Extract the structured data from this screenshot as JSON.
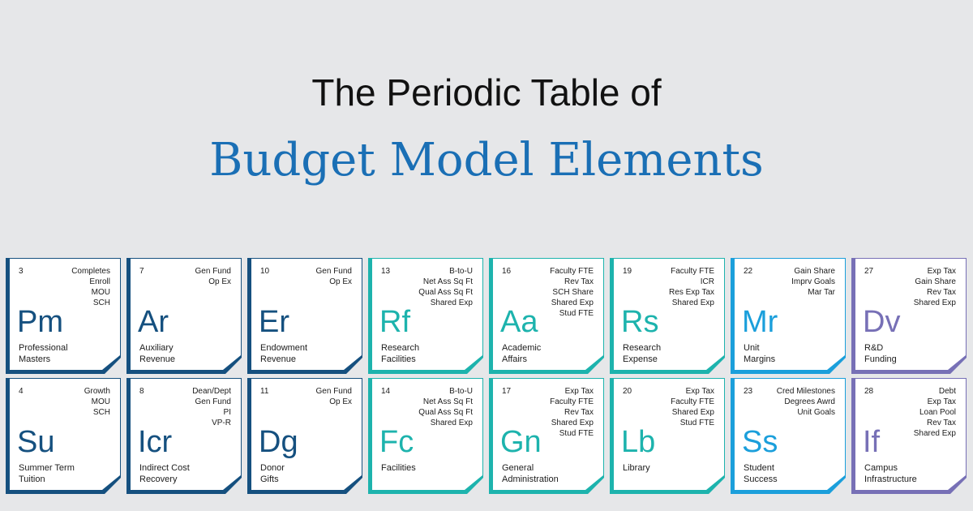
{
  "header": {
    "title_line1": "The Periodic Table of",
    "title_line2": "Budget Model Elements"
  },
  "rows": [
    [
      {
        "number": 3,
        "symbol": "Pm",
        "name": [
          "Professional",
          "Masters"
        ],
        "tags": [
          "Completes",
          "Enroll",
          "MOU",
          "SCH"
        ],
        "color": "#15507f"
      },
      {
        "number": 7,
        "symbol": "Ar",
        "name": [
          "Auxiliary",
          "Revenue"
        ],
        "tags": [
          "Gen Fund",
          "Op Ex"
        ],
        "color": "#15507f"
      },
      {
        "number": 10,
        "symbol": "Er",
        "name": [
          "Endowment",
          "Revenue"
        ],
        "tags": [
          "Gen Fund",
          "Op Ex"
        ],
        "color": "#15507f"
      },
      {
        "number": 13,
        "symbol": "Rf",
        "name": [
          "Research",
          "Facilities"
        ],
        "tags": [
          "B-to-U",
          "Net Ass Sq Ft",
          "Qual Ass Sq Ft",
          "Shared Exp"
        ],
        "color": "#1db3ad"
      },
      {
        "number": 16,
        "symbol": "Aa",
        "name": [
          "Academic",
          "Affairs"
        ],
        "tags": [
          "Faculty FTE",
          "Rev Tax",
          "SCH Share",
          "Shared Exp",
          "Stud FTE"
        ],
        "color": "#1db3ad"
      },
      {
        "number": 19,
        "symbol": "Rs",
        "name": [
          "Research",
          "Expense"
        ],
        "tags": [
          "Faculty FTE",
          "ICR",
          "Res Exp Tax",
          "Shared Exp"
        ],
        "color": "#1db3ad"
      },
      {
        "number": 22,
        "symbol": "Mr",
        "name": [
          "Unit",
          "Margins"
        ],
        "tags": [
          "Gain Share",
          "Imprv Goals",
          "Mar Tar"
        ],
        "color": "#1b9fdb"
      },
      {
        "number": 27,
        "symbol": "Dv",
        "name": [
          "R&D",
          "Funding"
        ],
        "tags": [
          "Exp Tax",
          "Gain Share",
          "Rev Tax",
          "Shared Exp"
        ],
        "color": "#7770b6"
      }
    ],
    [
      {
        "number": 4,
        "symbol": "Su",
        "name": [
          "Summer Term",
          "Tuition"
        ],
        "tags": [
          "Growth",
          "MOU",
          "SCH"
        ],
        "color": "#15507f"
      },
      {
        "number": 8,
        "symbol": "Icr",
        "name": [
          "Indirect Cost",
          "Recovery"
        ],
        "tags": [
          "Dean/Dept",
          "Gen Fund",
          "PI",
          "VP-R"
        ],
        "color": "#15507f"
      },
      {
        "number": 11,
        "symbol": "Dg",
        "name": [
          "Donor",
          "Gifts"
        ],
        "tags": [
          "Gen Fund",
          "Op Ex"
        ],
        "color": "#15507f"
      },
      {
        "number": 14,
        "symbol": "Fc",
        "name": [
          "Facilities"
        ],
        "tags": [
          "B-to-U",
          "Net Ass Sq Ft",
          "Qual Ass Sq Ft",
          "Shared Exp"
        ],
        "color": "#1db3ad"
      },
      {
        "number": 17,
        "symbol": "Gn",
        "name": [
          "General",
          "Administration"
        ],
        "tags": [
          "Exp Tax",
          "Faculty FTE",
          "Rev Tax",
          "Shared Exp",
          "Stud FTE"
        ],
        "color": "#1db3ad"
      },
      {
        "number": 20,
        "symbol": "Lb",
        "name": [
          "Library"
        ],
        "tags": [
          "Exp Tax",
          "Faculty FTE",
          "Shared Exp",
          "Stud FTE"
        ],
        "color": "#1db3ad"
      },
      {
        "number": 23,
        "symbol": "Ss",
        "name": [
          "Student",
          "Success"
        ],
        "tags": [
          "Cred Milestones",
          "Degrees Awrd",
          "Unit Goals"
        ],
        "color": "#1b9fdb"
      },
      {
        "number": 28,
        "symbol": "If",
        "name": [
          "Campus",
          "Infrastructure"
        ],
        "tags": [
          "Debt",
          "Exp Tax",
          "Loan Pool",
          "Rev Tax",
          "Shared Exp"
        ],
        "color": "#7770b6"
      }
    ]
  ]
}
